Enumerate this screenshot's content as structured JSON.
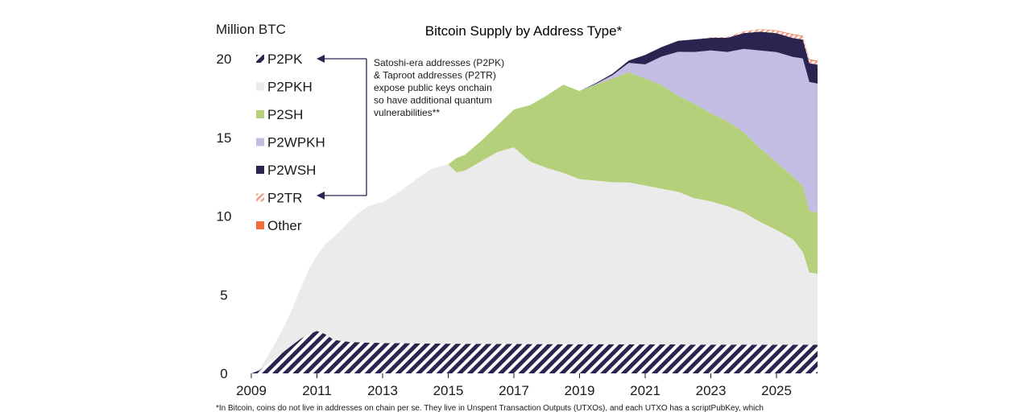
{
  "chart_data": {
    "type": "area",
    "title": "Bitcoin Supply by Address Type*",
    "ylabel": "Million BTC",
    "xlabel": "",
    "xlim": [
      2009,
      2026.25
    ],
    "ylim": [
      0,
      20
    ],
    "x_ticks": [
      2009,
      2011,
      2013,
      2015,
      2017,
      2019,
      2021,
      2023,
      2025
    ],
    "y_ticks": [
      0,
      5,
      10,
      15,
      20
    ],
    "legend_position": "top-left",
    "series": [
      {
        "name": "P2PK",
        "color": "#2a2550",
        "pattern": "hatched"
      },
      {
        "name": "P2PKH",
        "color": "#ebebeb",
        "pattern": "solid"
      },
      {
        "name": "P2SH",
        "color": "#b5d07a",
        "pattern": "solid"
      },
      {
        "name": "P2WPKH",
        "color": "#c4bde3",
        "pattern": "solid"
      },
      {
        "name": "P2WSH",
        "color": "#2a2550",
        "pattern": "solid"
      },
      {
        "name": "P2TR",
        "color": "#f3a08a",
        "pattern": "hatched"
      },
      {
        "name": "Other",
        "color": "#f26b3a",
        "pattern": "solid"
      }
    ],
    "data": {
      "x": [
        2009,
        2009.25,
        2009.5,
        2009.75,
        2010,
        2010.25,
        2010.5,
        2010.75,
        2011,
        2011.25,
        2011.5,
        2011.75,
        2012,
        2012.25,
        2012.5,
        2012.75,
        2013,
        2013.5,
        2014,
        2014.5,
        2015,
        2015.25,
        2015.5,
        2016,
        2016.5,
        2017,
        2017.5,
        2018,
        2018.5,
        2019,
        2019.5,
        2020,
        2020.5,
        2021,
        2021.5,
        2022,
        2022.5,
        2023,
        2023.5,
        2024,
        2024.5,
        2025,
        2025.5,
        2025.8,
        2026,
        2026.25
      ],
      "P2PK": [
        0,
        0.2,
        0.6,
        1.0,
        1.4,
        1.8,
        2.2,
        2.5,
        2.7,
        2.5,
        2.15,
        2.05,
        2.0,
        1.98,
        1.96,
        1.95,
        1.93,
        1.92,
        1.91,
        1.9,
        1.89,
        1.89,
        1.88,
        1.88,
        1.87,
        1.87,
        1.86,
        1.86,
        1.85,
        1.85,
        1.85,
        1.85,
        1.84,
        1.84,
        1.84,
        1.84,
        1.83,
        1.83,
        1.83,
        1.83,
        1.82,
        1.82,
        1.82,
        1.82,
        1.82,
        1.82
      ],
      "P2PKH": [
        0,
        0.05,
        0.5,
        1.0,
        1.6,
        2.3,
        3.2,
        4.1,
        4.8,
        5.7,
        6.5,
        7.1,
        7.7,
        8.2,
        8.6,
        8.8,
        8.95,
        9.6,
        10.4,
        11.1,
        11.4,
        10.9,
        11.0,
        11.6,
        12.2,
        12.5,
        11.6,
        11.2,
        10.9,
        10.5,
        10.4,
        10.3,
        10.3,
        10.1,
        9.9,
        9.7,
        9.3,
        9.1,
        8.8,
        8.4,
        7.8,
        7.3,
        6.7,
        5.9,
        4.6,
        4.5
      ],
      "P2SH": [
        0,
        0,
        0,
        0,
        0,
        0,
        0,
        0,
        0,
        0,
        0,
        0,
        0,
        0,
        0,
        0,
        0,
        0,
        0,
        0,
        0,
        0.9,
        1.0,
        1.3,
        1.7,
        2.4,
        3.6,
        4.6,
        5.6,
        5.6,
        6.1,
        6.6,
        7.0,
        6.8,
        6.6,
        6.1,
        6.0,
        5.6,
        5.4,
        5.1,
        4.7,
        4.3,
        4.0,
        4.2,
        3.9,
        3.9
      ],
      "P2WPKH": [
        0,
        0,
        0,
        0,
        0,
        0,
        0,
        0,
        0,
        0,
        0,
        0,
        0,
        0,
        0,
        0,
        0,
        0,
        0,
        0,
        0,
        0,
        0,
        0,
        0,
        0,
        0,
        0,
        0,
        0,
        0.05,
        0.2,
        0.6,
        0.9,
        1.8,
        2.8,
        3.3,
        4.0,
        4.4,
        5.3,
        6.2,
        7.0,
        7.6,
        8.1,
        8.2,
        8.2
      ],
      "P2WSH": [
        0,
        0,
        0,
        0,
        0,
        0,
        0,
        0,
        0,
        0,
        0,
        0,
        0,
        0,
        0,
        0,
        0,
        0,
        0,
        0,
        0,
        0,
        0,
        0,
        0,
        0,
        0,
        0,
        0,
        0,
        0.05,
        0.1,
        0.15,
        0.6,
        0.6,
        0.7,
        0.8,
        0.8,
        0.9,
        1.0,
        1.2,
        1.2,
        1.2,
        1.2,
        1.2,
        1.2
      ],
      "P2TR": [
        0,
        0,
        0,
        0,
        0,
        0,
        0,
        0,
        0,
        0,
        0,
        0,
        0,
        0,
        0,
        0,
        0,
        0,
        0,
        0,
        0,
        0,
        0,
        0,
        0,
        0,
        0,
        0,
        0,
        0,
        0,
        0,
        0,
        0,
        0,
        0,
        0,
        0.03,
        0.06,
        0.1,
        0.15,
        0.15,
        0.2,
        0.2,
        0.2,
        0.2
      ],
      "Other": [
        0,
        0,
        0,
        0,
        0,
        0,
        0,
        0,
        0,
        0,
        0,
        0,
        0,
        0,
        0,
        0,
        0,
        0,
        0,
        0,
        0,
        0,
        0,
        0,
        0,
        0,
        0,
        0,
        0,
        0,
        0,
        0,
        0,
        0,
        0,
        0,
        0,
        0,
        0,
        0.01,
        0.02,
        0.03,
        0.04,
        0.04,
        0.05,
        0.05
      ]
    },
    "annotation": {
      "lines": [
        "Satoshi-era addresses (P2PK)",
        "& Taproot addresses (P2TR)",
        "expose public keys onchain",
        "so have additional quantum",
        "vulnerabilities**"
      ],
      "points_to": [
        "P2PK",
        "P2TR"
      ]
    },
    "footnote": "*In Bitcoin, coins do not live in addresses on chain per se. They live in Unspent Transaction Outputs (UTXOs), and each UTXO has a scriptPubKey, which"
  }
}
